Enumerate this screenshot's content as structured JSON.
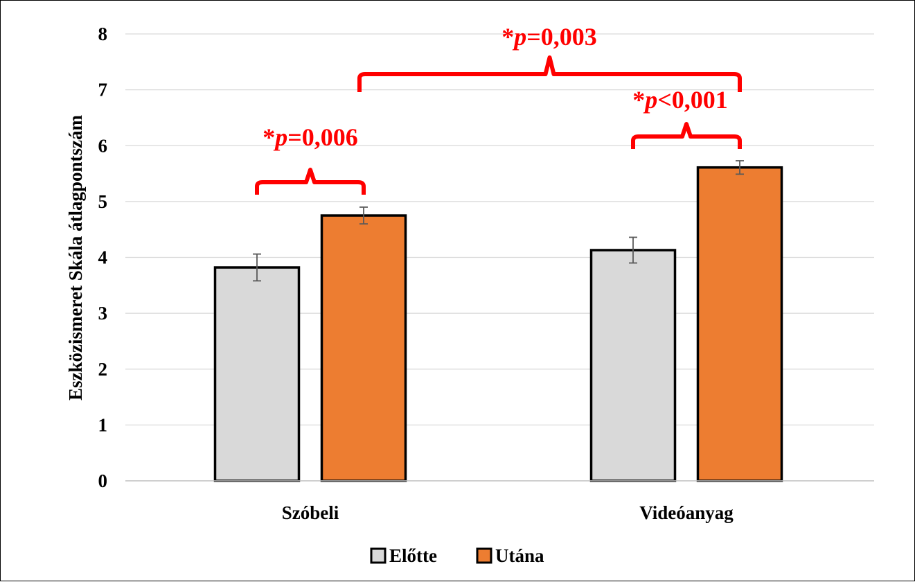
{
  "chart_data": {
    "type": "bar",
    "ylabel": "Eszközismeret Skála átlagpontszám",
    "xlabel": "",
    "ylim": [
      0,
      8
    ],
    "yticks": [
      "0",
      "1",
      "2",
      "3",
      "4",
      "5",
      "6",
      "7",
      "8"
    ],
    "grid": true,
    "legend_position": "bottom",
    "categories": [
      "Szóbeli",
      "Videóanyag"
    ],
    "series": [
      {
        "name": "Előtte",
        "color": "#d9d9d9",
        "values": [
          3.82,
          4.13
        ],
        "errors": [
          0.24,
          0.23
        ]
      },
      {
        "name": "Utána",
        "color": "#ed7d31",
        "values": [
          4.75,
          5.61
        ],
        "errors": [
          0.15,
          0.12
        ]
      }
    ],
    "annotations": [
      {
        "star": "*",
        "p": "p",
        "rest": "=0,006",
        "between": "Szóbeli: Előtte–Utána"
      },
      {
        "star": "*",
        "p": "p",
        "rest": "<0,001",
        "between": "Videóanyag: Előtte–Utána"
      },
      {
        "star": "*",
        "p": "p",
        "rest": "=0,003",
        "between": "Szóbeli Előtte – Videóanyag Utána"
      }
    ],
    "annotation_color": "#ff0000"
  }
}
